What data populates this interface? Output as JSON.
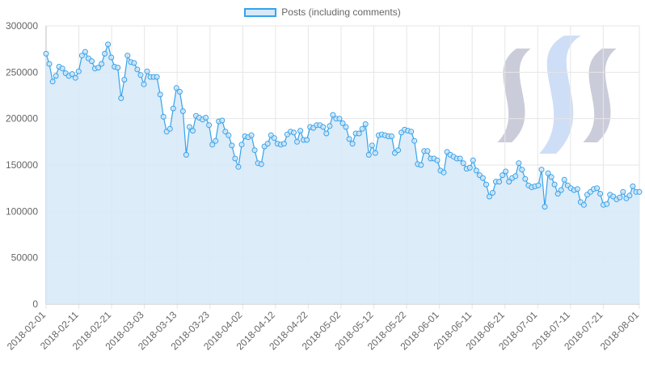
{
  "legend": {
    "label": "Posts (including comments)"
  },
  "colors": {
    "line": "#36a2eb",
    "fill": "#d6e9f8",
    "grid": "#e6e6e6",
    "axis_text": "#666666",
    "logo_a": "#c5c6d6",
    "logo_b": "#c9daf5"
  },
  "chart_data": {
    "type": "line",
    "title": "",
    "xlabel": "",
    "ylabel": "",
    "ylim": [
      0,
      300000
    ],
    "y_ticks": [
      "0",
      "50000",
      "100000",
      "150000",
      "200000",
      "250000",
      "300000"
    ],
    "x_ticks": [
      "2018-02-01",
      "2018-02-11",
      "2018-02-21",
      "2018-03-03",
      "2018-03-13",
      "2018-03-23",
      "2018-04-02",
      "2018-04-12",
      "2018-04-22",
      "2018-05-02",
      "2018-05-12",
      "2018-05-22",
      "2018-06-01",
      "2018-06-11",
      "2018-06-21",
      "2018-07-01",
      "2018-07-11",
      "2018-07-21",
      "2018-08-01"
    ],
    "x_start": "2018-02-01",
    "x_end": "2018-08-01",
    "grid": true,
    "legend_position": "top",
    "series": [
      {
        "name": "Posts (including comments)",
        "values": [
          270000,
          259000,
          240000,
          246000,
          256000,
          254000,
          249000,
          246000,
          248000,
          244000,
          251000,
          268000,
          272000,
          265000,
          262000,
          254000,
          255000,
          259000,
          270000,
          280000,
          266000,
          256000,
          255000,
          222000,
          242000,
          268000,
          261000,
          260000,
          253000,
          247000,
          237000,
          251000,
          245000,
          245000,
          245000,
          226000,
          202000,
          186000,
          189000,
          211000,
          233000,
          229000,
          208000,
          161000,
          191000,
          187000,
          203000,
          201000,
          199000,
          201000,
          193000,
          172000,
          176000,
          197000,
          198000,
          186000,
          182000,
          171000,
          157000,
          148000,
          172000,
          181000,
          180000,
          182000,
          166000,
          152000,
          151000,
          170000,
          173000,
          182000,
          179000,
          173000,
          172000,
          173000,
          183000,
          186000,
          185000,
          175000,
          187000,
          177000,
          177000,
          191000,
          190000,
          193000,
          193000,
          191000,
          184000,
          192000,
          204000,
          200000,
          200000,
          195000,
          191000,
          178000,
          173000,
          184000,
          184000,
          189000,
          194000,
          161000,
          171000,
          163000,
          182000,
          183000,
          182000,
          181000,
          181000,
          163000,
          166000,
          185000,
          188000,
          187000,
          186000,
          176000,
          151000,
          150000,
          165000,
          165000,
          157000,
          157000,
          155000,
          144000,
          142000,
          164000,
          161000,
          159000,
          157000,
          157000,
          152000,
          146000,
          147000,
          155000,
          144000,
          139000,
          136000,
          129000,
          116000,
          120000,
          132000,
          132000,
          139000,
          143000,
          132000,
          136000,
          138000,
          152000,
          145000,
          135000,
          128000,
          126000,
          127000,
          128000,
          145000,
          105000,
          141000,
          137000,
          129000,
          119000,
          123000,
          134000,
          128000,
          125000,
          123000,
          124000,
          110000,
          107000,
          118000,
          121000,
          124000,
          125000,
          119000,
          107000,
          108000,
          118000,
          116000,
          113000,
          115000,
          121000,
          114000,
          117000,
          127000,
          121000,
          121000
        ]
      }
    ]
  }
}
